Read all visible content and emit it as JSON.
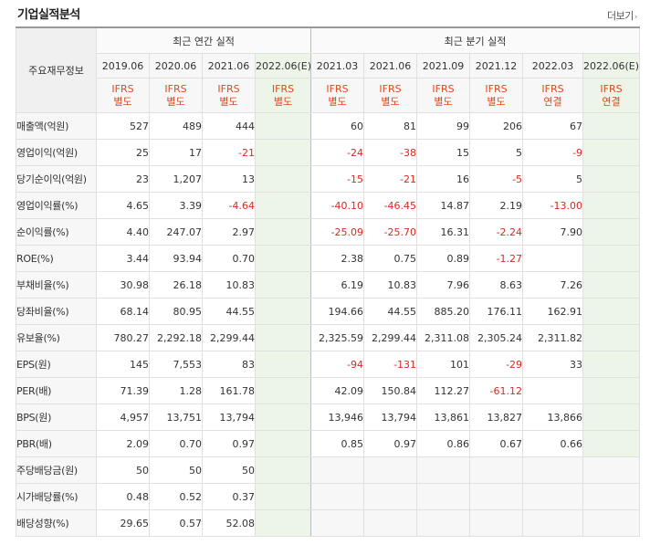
{
  "section_title": "기업실적분석",
  "more_label": "더보기",
  "row_header": "주요재무정보",
  "annual_header": "최근 연간 실적",
  "quarter_header": "최근 분기 실적",
  "annual_periods": [
    "2019.06",
    "2020.06",
    "2021.06",
    "2022.06(E)"
  ],
  "quarter_periods": [
    "2021.03",
    "2021.06",
    "2021.09",
    "2021.12",
    "2022.03",
    "2022.06(E)"
  ],
  "annual_standards": [
    "IFRS 별도",
    "IFRS 별도",
    "IFRS 별도",
    "IFRS 별도"
  ],
  "quarter_standards": [
    "IFRS 별도",
    "IFRS 별도",
    "IFRS 별도",
    "IFRS 별도",
    "IFRS 연결",
    "IFRS 연결"
  ],
  "rows": [
    {
      "label": "매출액(억원)",
      "annual": [
        "527",
        "489",
        "444",
        ""
      ],
      "quarter": [
        "60",
        "81",
        "99",
        "206",
        "67",
        ""
      ]
    },
    {
      "label": "영업이익(억원)",
      "annual": [
        "25",
        "17",
        "-21",
        ""
      ],
      "quarter": [
        "-24",
        "-38",
        "15",
        "5",
        "-9",
        ""
      ]
    },
    {
      "label": "당기순이익(억원)",
      "annual": [
        "23",
        "1,207",
        "13",
        ""
      ],
      "quarter": [
        "-15",
        "-21",
        "16",
        "-5",
        "5",
        ""
      ]
    },
    {
      "label": "영업이익률(%)",
      "annual": [
        "4.65",
        "3.39",
        "-4.64",
        ""
      ],
      "quarter": [
        "-40.10",
        "-46.45",
        "14.87",
        "2.19",
        "-13.00",
        ""
      ]
    },
    {
      "label": "순이익률(%)",
      "annual": [
        "4.40",
        "247.07",
        "2.97",
        ""
      ],
      "quarter": [
        "-25.09",
        "-25.70",
        "16.31",
        "-2.24",
        "7.90",
        ""
      ]
    },
    {
      "label": "ROE(%)",
      "annual": [
        "3.44",
        "93.94",
        "0.70",
        ""
      ],
      "quarter": [
        "2.38",
        "0.75",
        "0.89",
        "-1.27",
        "",
        ""
      ]
    },
    {
      "label": "부채비율(%)",
      "annual": [
        "30.98",
        "26.18",
        "10.83",
        ""
      ],
      "quarter": [
        "6.19",
        "10.83",
        "7.96",
        "8.63",
        "7.26",
        ""
      ]
    },
    {
      "label": "당좌비율(%)",
      "annual": [
        "68.14",
        "80.95",
        "44.55",
        ""
      ],
      "quarter": [
        "194.66",
        "44.55",
        "885.20",
        "176.11",
        "162.91",
        ""
      ]
    },
    {
      "label": "유보율(%)",
      "annual": [
        "780.27",
        "2,292.18",
        "2,299.44",
        ""
      ],
      "quarter": [
        "2,325.59",
        "2,299.44",
        "2,311.08",
        "2,305.24",
        "2,311.82",
        ""
      ]
    },
    {
      "label": "EPS(원)",
      "annual": [
        "145",
        "7,553",
        "83",
        ""
      ],
      "quarter": [
        "-94",
        "-131",
        "101",
        "-29",
        "33",
        ""
      ]
    },
    {
      "label": "PER(배)",
      "annual": [
        "71.39",
        "1.28",
        "161.78",
        ""
      ],
      "quarter": [
        "42.09",
        "150.84",
        "112.27",
        "-61.12",
        "",
        ""
      ]
    },
    {
      "label": "BPS(원)",
      "annual": [
        "4,957",
        "13,751",
        "13,794",
        ""
      ],
      "quarter": [
        "13,946",
        "13,794",
        "13,861",
        "13,827",
        "13,866",
        ""
      ]
    },
    {
      "label": "PBR(배)",
      "annual": [
        "2.09",
        "0.70",
        "0.97",
        ""
      ],
      "quarter": [
        "0.85",
        "0.97",
        "0.86",
        "0.67",
        "0.66",
        ""
      ]
    },
    {
      "label": "주당배당금(원)",
      "annual": [
        "50",
        "50",
        "50",
        ""
      ],
      "quarter": null
    },
    {
      "label": "시가배당률(%)",
      "annual": [
        "0.48",
        "0.52",
        "0.37",
        ""
      ],
      "quarter": null
    },
    {
      "label": "배당성향(%)",
      "annual": [
        "29.65",
        "0.57",
        "52.08",
        ""
      ],
      "quarter": null
    }
  ]
}
